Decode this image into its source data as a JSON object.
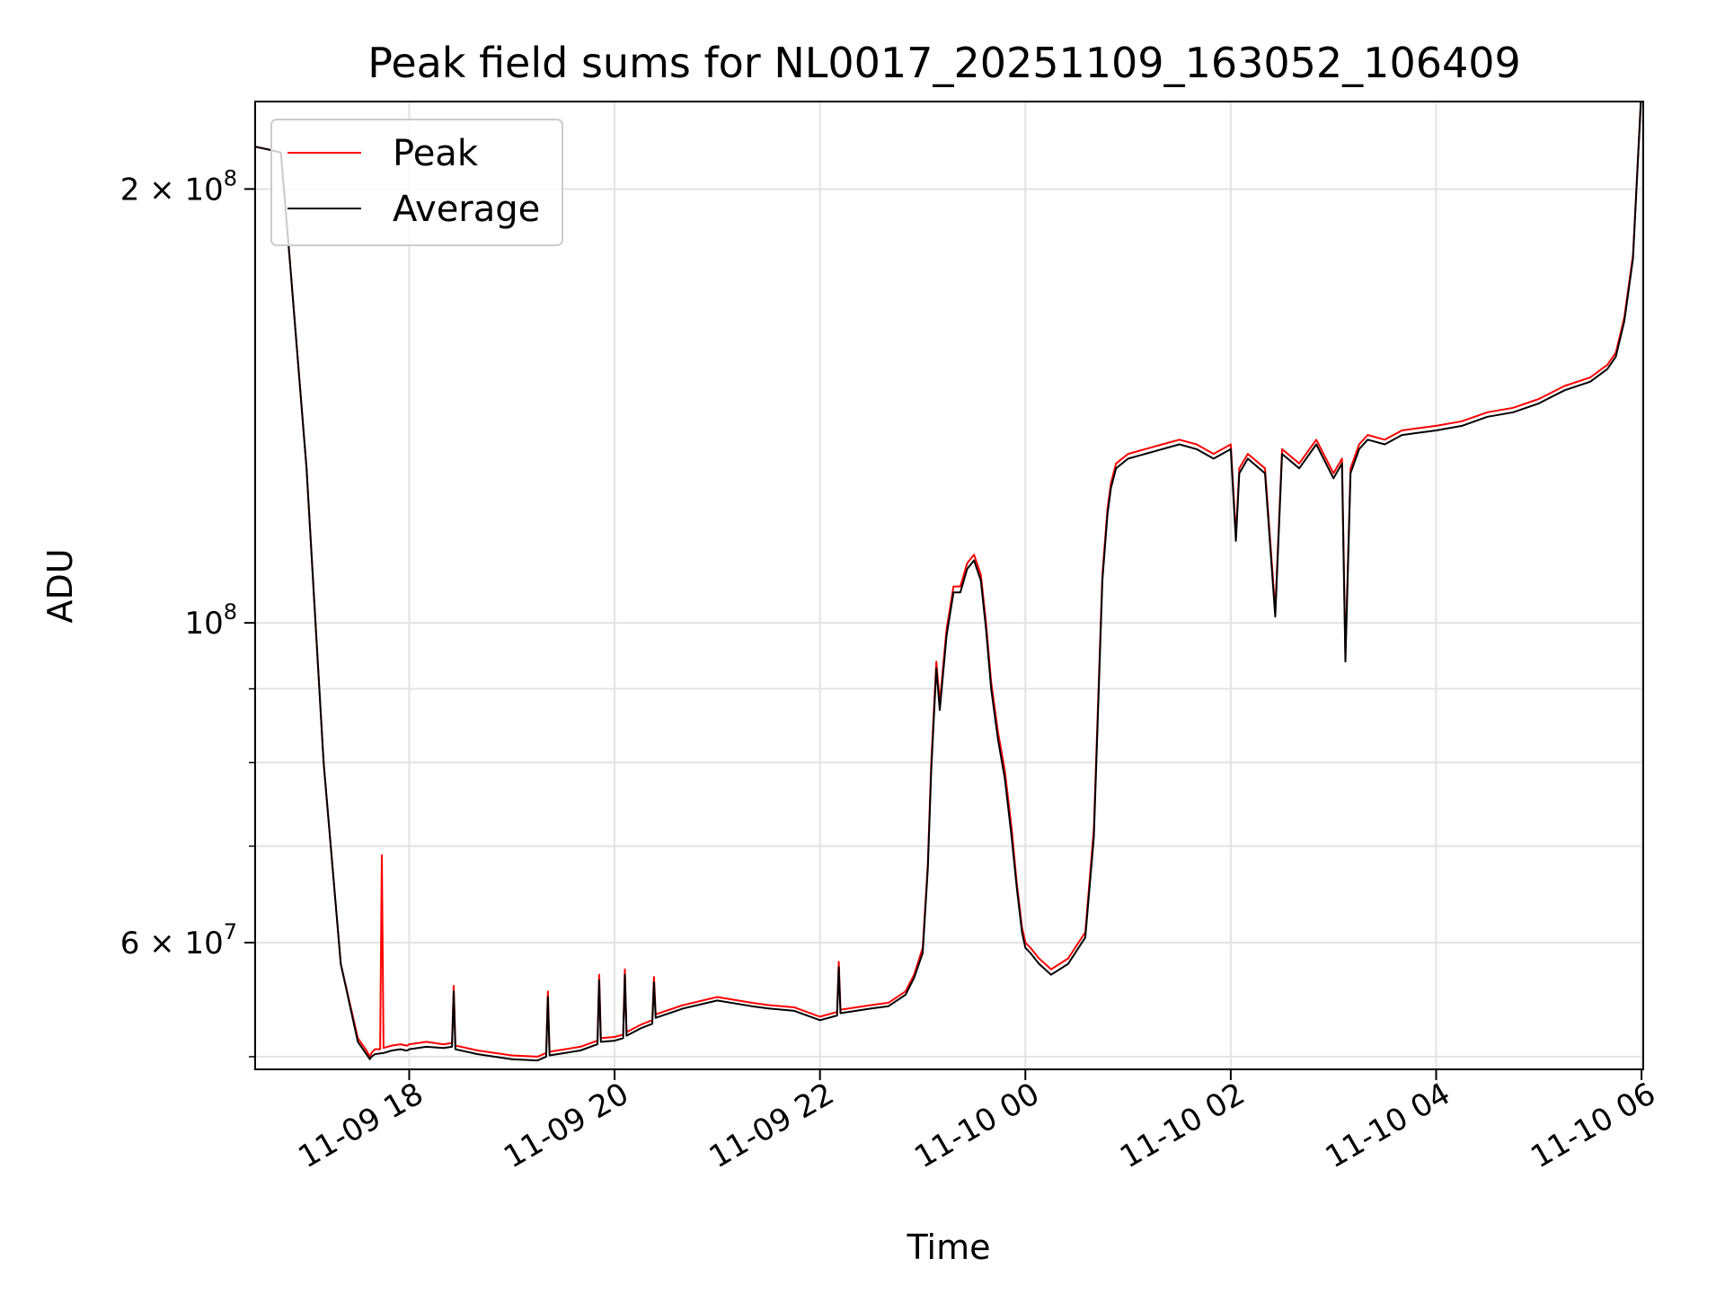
{
  "chart_data": {
    "type": "line",
    "title": "Peak field sums for NL0017_20251109_163052_106409",
    "xlabel": "Time",
    "ylabel": "ADU",
    "y_scale": "log",
    "grid": true,
    "legend_position": "top-left",
    "xlim": [
      "2025-11-09 16:30",
      "2025-11-10 06:01"
    ],
    "ylim": [
      49000000,
      230000000
    ],
    "x_ticks": [
      {
        "value": "2025-11-09 18:00",
        "label": "11-09 18"
      },
      {
        "value": "2025-11-09 20:00",
        "label": "11-09 20"
      },
      {
        "value": "2025-11-09 22:00",
        "label": "11-09 22"
      },
      {
        "value": "2025-11-10 00:00",
        "label": "11-10 00"
      },
      {
        "value": "2025-11-10 02:00",
        "label": "11-10 02"
      },
      {
        "value": "2025-11-10 04:00",
        "label": "11-10 04"
      },
      {
        "value": "2025-11-10 06:00",
        "label": "11-10 06"
      }
    ],
    "y_ticks": [
      {
        "value": 200000000,
        "base": "2 × 10",
        "exp": "8"
      },
      {
        "value": 100000000,
        "base": "10",
        "exp": "8"
      },
      {
        "value": 60000000,
        "base": "6 × 10",
        "exp": "7"
      }
    ],
    "y_minor_ticks": [
      50000000,
      70000000,
      80000000,
      90000000
    ],
    "series": [
      {
        "name": "Peak",
        "color": "#ff0000",
        "x": [
          "2025-11-09 16:30",
          "2025-11-09 16:38",
          "2025-11-09 16:45",
          "2025-11-09 16:50",
          "2025-11-09 17:00",
          "2025-11-09 17:10",
          "2025-11-09 17:20",
          "2025-11-09 17:30",
          "2025-11-09 17:35",
          "2025-11-09 17:37",
          "2025-11-09 17:38",
          "2025-11-09 17:40",
          "2025-11-09 17:43",
          "2025-11-09 17:44",
          "2025-11-09 17:45",
          "2025-11-09 17:50",
          "2025-11-09 17:55",
          "2025-11-09 17:58",
          "2025-11-09 17:59",
          "2025-11-09 18:00",
          "2025-11-09 18:10",
          "2025-11-09 18:20",
          "2025-11-09 18:25",
          "2025-11-09 18:26",
          "2025-11-09 18:27",
          "2025-11-09 18:40",
          "2025-11-09 19:00",
          "2025-11-09 19:15",
          "2025-11-09 19:20",
          "2025-11-09 19:21",
          "2025-11-09 19:22",
          "2025-11-09 19:40",
          "2025-11-09 19:50",
          "2025-11-09 19:51",
          "2025-11-09 19:52",
          "2025-11-09 20:00",
          "2025-11-09 20:05",
          "2025-11-09 20:06",
          "2025-11-09 20:07",
          "2025-11-09 20:15",
          "2025-11-09 20:22",
          "2025-11-09 20:23",
          "2025-11-09 20:24",
          "2025-11-09 20:40",
          "2025-11-09 21:00",
          "2025-11-09 21:20",
          "2025-11-09 21:30",
          "2025-11-09 21:45",
          "2025-11-09 22:00",
          "2025-11-09 22:10",
          "2025-11-09 22:11",
          "2025-11-09 22:12",
          "2025-11-09 22:30",
          "2025-11-09 22:40",
          "2025-11-09 22:50",
          "2025-11-09 22:55",
          "2025-11-09 23:00",
          "2025-11-09 23:03",
          "2025-11-09 23:05",
          "2025-11-09 23:08",
          "2025-11-09 23:10",
          "2025-11-09 23:14",
          "2025-11-09 23:18",
          "2025-11-09 23:22",
          "2025-11-09 23:26",
          "2025-11-09 23:30",
          "2025-11-09 23:34",
          "2025-11-09 23:37",
          "2025-11-09 23:40",
          "2025-11-09 23:44",
          "2025-11-09 23:48",
          "2025-11-09 23:52",
          "2025-11-09 23:55",
          "2025-11-09 23:58",
          "2025-11-10 00:00",
          "2025-11-10 00:03",
          "2025-11-10 00:08",
          "2025-11-10 00:15",
          "2025-11-10 00:25",
          "2025-11-10 00:35",
          "2025-11-10 00:40",
          "2025-11-10 00:45",
          "2025-11-10 00:48",
          "2025-11-10 00:50",
          "2025-11-10 00:53",
          "2025-11-10 01:00",
          "2025-11-10 01:10",
          "2025-11-10 01:20",
          "2025-11-10 01:30",
          "2025-11-10 01:40",
          "2025-11-10 01:50",
          "2025-11-10 02:00",
          "2025-11-10 02:03",
          "2025-11-10 02:05",
          "2025-11-10 02:10",
          "2025-11-10 02:20",
          "2025-11-10 02:26",
          "2025-11-10 02:30",
          "2025-11-10 02:40",
          "2025-11-10 02:50",
          "2025-11-10 03:00",
          "2025-11-10 03:05",
          "2025-11-10 03:07",
          "2025-11-10 03:10",
          "2025-11-10 03:15",
          "2025-11-10 03:20",
          "2025-11-10 03:30",
          "2025-11-10 03:40",
          "2025-11-10 03:50",
          "2025-11-10 04:00",
          "2025-11-10 04:15",
          "2025-11-10 04:30",
          "2025-11-10 04:45",
          "2025-11-10 05:00",
          "2025-11-10 05:15",
          "2025-11-10 05:30",
          "2025-11-10 05:40",
          "2025-11-10 05:45",
          "2025-11-10 05:50",
          "2025-11-10 05:55",
          "2025-11-10 06:00"
        ],
        "values": [
          214000000,
          213000000,
          212000000,
          180000000,
          128000000,
          80000000,
          58000000,
          51500000,
          50500000,
          50000000,
          50300000,
          50600000,
          50600000,
          69000000,
          50700000,
          50900000,
          51000000,
          50900000,
          50900000,
          51000000,
          51200000,
          51000000,
          51100000,
          56000000,
          50900000,
          50500000,
          50100000,
          50000000,
          50300000,
          55500000,
          50400000,
          50800000,
          51300000,
          57000000,
          51500000,
          51600000,
          51800000,
          57500000,
          52000000,
          52600000,
          53000000,
          56800000,
          53500000,
          54300000,
          55000000,
          54500000,
          54300000,
          54100000,
          53300000,
          53700000,
          58200000,
          53900000,
          54300000,
          54500000,
          55500000,
          57000000,
          59500000,
          68000000,
          80000000,
          94000000,
          88000000,
          99000000,
          106000000,
          106000000,
          110000000,
          111500000,
          108000000,
          100000000,
          91000000,
          84000000,
          79000000,
          72000000,
          66000000,
          61500000,
          60000000,
          59500000,
          58500000,
          57500000,
          58500000,
          61000000,
          72000000,
          108000000,
          120000000,
          125000000,
          129000000,
          131000000,
          132000000,
          133000000,
          134000000,
          133000000,
          131000000,
          133000000,
          115000000,
          128000000,
          131000000,
          128000000,
          102000000,
          132000000,
          129000000,
          134000000,
          127000000,
          130000000,
          95000000,
          128000000,
          133000000,
          135000000,
          134000000,
          136000000,
          136500000,
          137000000,
          138000000,
          140000000,
          141000000,
          143000000,
          146000000,
          148000000,
          151000000,
          154000000,
          163000000,
          180000000,
          235000000
        ]
      },
      {
        "name": "Average",
        "color": "#000000",
        "x": [
          "2025-11-09 16:30",
          "2025-11-09 16:38",
          "2025-11-09 16:45",
          "2025-11-09 16:50",
          "2025-11-09 17:00",
          "2025-11-09 17:10",
          "2025-11-09 17:20",
          "2025-11-09 17:30",
          "2025-11-09 17:35",
          "2025-11-09 17:37",
          "2025-11-09 17:38",
          "2025-11-09 17:40",
          "2025-11-09 17:45",
          "2025-11-09 17:50",
          "2025-11-09 17:55",
          "2025-11-09 17:58",
          "2025-11-09 17:59",
          "2025-11-09 18:00",
          "2025-11-09 18:10",
          "2025-11-09 18:20",
          "2025-11-09 18:25",
          "2025-11-09 18:26",
          "2025-11-09 18:27",
          "2025-11-09 18:40",
          "2025-11-09 19:00",
          "2025-11-09 19:15",
          "2025-11-09 19:20",
          "2025-11-09 19:21",
          "2025-11-09 19:22",
          "2025-11-09 19:40",
          "2025-11-09 19:50",
          "2025-11-09 19:51",
          "2025-11-09 19:52",
          "2025-11-09 20:00",
          "2025-11-09 20:05",
          "2025-11-09 20:06",
          "2025-11-09 20:07",
          "2025-11-09 20:15",
          "2025-11-09 20:22",
          "2025-11-09 20:23",
          "2025-11-09 20:24",
          "2025-11-09 20:40",
          "2025-11-09 21:00",
          "2025-11-09 21:20",
          "2025-11-09 21:30",
          "2025-11-09 21:45",
          "2025-11-09 22:00",
          "2025-11-09 22:10",
          "2025-11-09 22:11",
          "2025-11-09 22:12",
          "2025-11-09 22:30",
          "2025-11-09 22:40",
          "2025-11-09 22:50",
          "2025-11-09 22:55",
          "2025-11-09 23:00",
          "2025-11-09 23:03",
          "2025-11-09 23:05",
          "2025-11-09 23:08",
          "2025-11-09 23:10",
          "2025-11-09 23:14",
          "2025-11-09 23:18",
          "2025-11-09 23:22",
          "2025-11-09 23:26",
          "2025-11-09 23:30",
          "2025-11-09 23:34",
          "2025-11-09 23:37",
          "2025-11-09 23:40",
          "2025-11-09 23:44",
          "2025-11-09 23:48",
          "2025-11-09 23:52",
          "2025-11-09 23:55",
          "2025-11-09 23:58",
          "2025-11-10 00:00",
          "2025-11-10 00:03",
          "2025-11-10 00:08",
          "2025-11-10 00:15",
          "2025-11-10 00:25",
          "2025-11-10 00:35",
          "2025-11-10 00:40",
          "2025-11-10 00:45",
          "2025-11-10 00:48",
          "2025-11-10 00:50",
          "2025-11-10 00:53",
          "2025-11-10 01:00",
          "2025-11-10 01:10",
          "2025-11-10 01:20",
          "2025-11-10 01:30",
          "2025-11-10 01:40",
          "2025-11-10 01:50",
          "2025-11-10 02:00",
          "2025-11-10 02:03",
          "2025-11-10 02:05",
          "2025-11-10 02:10",
          "2025-11-10 02:20",
          "2025-11-10 02:26",
          "2025-11-10 02:30",
          "2025-11-10 02:40",
          "2025-11-10 02:50",
          "2025-11-10 03:00",
          "2025-11-10 03:05",
          "2025-11-10 03:07",
          "2025-11-10 03:10",
          "2025-11-10 03:15",
          "2025-11-10 03:20",
          "2025-11-10 03:30",
          "2025-11-10 03:40",
          "2025-11-10 03:50",
          "2025-11-10 04:00",
          "2025-11-10 04:15",
          "2025-11-10 04:30",
          "2025-11-10 04:45",
          "2025-11-10 05:00",
          "2025-11-10 05:15",
          "2025-11-10 05:30",
          "2025-11-10 05:40",
          "2025-11-10 05:45",
          "2025-11-10 05:50",
          "2025-11-10 05:55",
          "2025-11-10 06:00"
        ],
        "values": [
          214000000,
          213000000,
          212000000,
          180000000,
          128000000,
          80000000,
          58000000,
          51200000,
          50200000,
          49800000,
          50000000,
          50200000,
          50300000,
          50500000,
          50600000,
          50500000,
          50500000,
          50600000,
          50800000,
          50700000,
          50800000,
          55500000,
          50600000,
          50200000,
          49800000,
          49700000,
          50000000,
          55000000,
          50100000,
          50500000,
          51000000,
          56500000,
          51200000,
          51300000,
          51500000,
          57000000,
          51700000,
          52300000,
          52700000,
          56300000,
          53200000,
          54000000,
          54700000,
          54200000,
          54000000,
          53800000,
          53000000,
          53400000,
          57700000,
          53600000,
          54000000,
          54200000,
          55200000,
          56700000,
          59000000,
          67500000,
          79000000,
          93000000,
          87000000,
          98000000,
          105000000,
          105000000,
          109000000,
          110500000,
          107000000,
          99000000,
          90000000,
          83000000,
          78000000,
          71000000,
          65500000,
          61000000,
          59500000,
          59000000,
          58000000,
          57000000,
          58000000,
          60500000,
          71000000,
          107000000,
          119000000,
          124000000,
          128000000,
          130000000,
          131000000,
          132000000,
          133000000,
          132000000,
          130000000,
          132000000,
          114000000,
          127000000,
          130000000,
          127000000,
          101000000,
          131000000,
          128000000,
          133000000,
          126000000,
          129000000,
          94000000,
          127000000,
          132000000,
          134000000,
          133000000,
          135000000,
          135500000,
          136000000,
          137000000,
          139000000,
          140000000,
          142000000,
          145000000,
          147000000,
          150000000,
          153000000,
          162000000,
          179000000,
          235000000
        ]
      }
    ]
  }
}
